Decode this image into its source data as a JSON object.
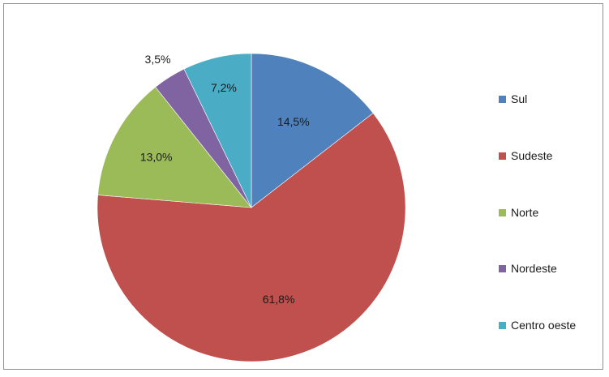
{
  "chart_data": {
    "type": "pie",
    "title": "",
    "slices": [
      {
        "name": "Sul",
        "value": 14.5,
        "label": "14,5%",
        "color": "#4F81BD"
      },
      {
        "name": "Sudeste",
        "value": 61.8,
        "label": "61,8%",
        "color": "#C0504D"
      },
      {
        "name": "Norte",
        "value": 13.0,
        "label": "13,0%",
        "color": "#9BBB59"
      },
      {
        "name": "Nordeste",
        "value": 3.5,
        "label": "3,5%",
        "color": "#8064A2"
      },
      {
        "name": "Centro oeste",
        "value": 7.2,
        "label": "7,2%",
        "color": "#4BACC6"
      }
    ],
    "start_angle": "12 o'clock",
    "direction": "clockwise",
    "legend_position": "right"
  },
  "legend": {
    "items": [
      {
        "label": "Sul",
        "color": "#4F81BD"
      },
      {
        "label": "Sudeste",
        "color": "#C0504D"
      },
      {
        "label": "Norte",
        "color": "#9BBB59"
      },
      {
        "label": "Nordeste",
        "color": "#8064A2"
      },
      {
        "label": "Centro oeste",
        "color": "#4BACC6"
      }
    ]
  }
}
